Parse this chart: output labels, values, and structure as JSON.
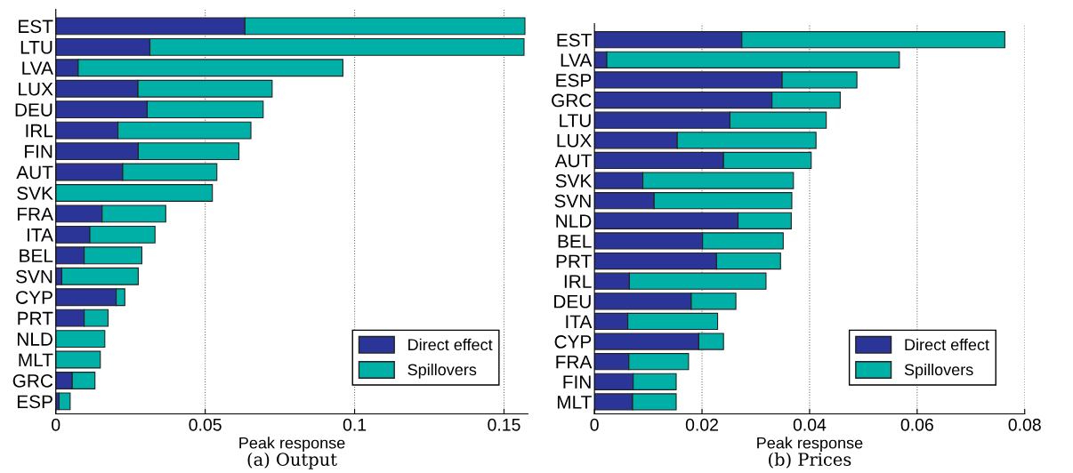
{
  "chart_data": [
    {
      "type": "bar",
      "orientation": "horizontal",
      "stacked": true,
      "title": "(a) Output",
      "xlabel": "Peak response",
      "categories": [
        "EST",
        "LTU",
        "LVA",
        "LUX",
        "DEU",
        "IRL",
        "FIN",
        "AUT",
        "SVK",
        "FRA",
        "ITA",
        "BEL",
        "SVN",
        "CYP",
        "PRT",
        "NLD",
        "MLT",
        "GRC",
        "ESP"
      ],
      "series": [
        {
          "name": "Direct effect",
          "color": "#2b3497",
          "values": [
            0.0633,
            0.0315,
            0.0075,
            0.0275,
            0.0306,
            0.0208,
            0.0276,
            0.0224,
            0,
            0.0155,
            0.0114,
            0.0095,
            0.002,
            0.0202,
            0.0095,
            0,
            0,
            0.0055,
            0.0011
          ]
        },
        {
          "name": "Spillovers",
          "color": "#00afa5",
          "values": [
            0.0937,
            0.1252,
            0.0886,
            0.0449,
            0.0388,
            0.0445,
            0.0337,
            0.0315,
            0.0524,
            0.0213,
            0.0218,
            0.0193,
            0.0256,
            0.0029,
            0.008,
            0.0164,
            0.0149,
            0.0076,
            0.0037
          ]
        }
      ],
      "xlim": [
        0,
        0.158
      ],
      "xticks": [
        0,
        0.05,
        0.1,
        0.15
      ],
      "grid": "x",
      "legend": "bottom right"
    },
    {
      "type": "bar",
      "orientation": "horizontal",
      "stacked": true,
      "title": "(b) Prices",
      "xlabel": "Peak response",
      "categories": [
        "EST",
        "LVA",
        "ESP",
        "GRC",
        "LTU",
        "LUX",
        "AUT",
        "SVK",
        "SVN",
        "NLD",
        "BEL",
        "PRT",
        "IRL",
        "DEU",
        "ITA",
        "CYP",
        "FRA",
        "FIN",
        "MLT"
      ],
      "series": [
        {
          "name": "Direct effect",
          "color": "#2b3497",
          "values": [
            0.0274,
            0.0023,
            0.0349,
            0.033,
            0.0252,
            0.0154,
            0.024,
            0.009,
            0.0111,
            0.0267,
            0.0201,
            0.0227,
            0.0065,
            0.018,
            0.0062,
            0.0194,
            0.0064,
            0.0072,
            0.0071
          ]
        },
        {
          "name": "Spillovers",
          "color": "#00afa5",
          "values": [
            0.0489,
            0.0544,
            0.0139,
            0.0127,
            0.0179,
            0.0258,
            0.0163,
            0.028,
            0.0256,
            0.0099,
            0.015,
            0.0119,
            0.0254,
            0.0083,
            0.0167,
            0.0046,
            0.0111,
            0.008,
            0.0081
          ]
        }
      ],
      "xlim": [
        0,
        0.08
      ],
      "xticks": [
        0,
        0.02,
        0.04,
        0.06,
        0.08
      ],
      "grid": "x",
      "legend": "bottom right"
    }
  ]
}
